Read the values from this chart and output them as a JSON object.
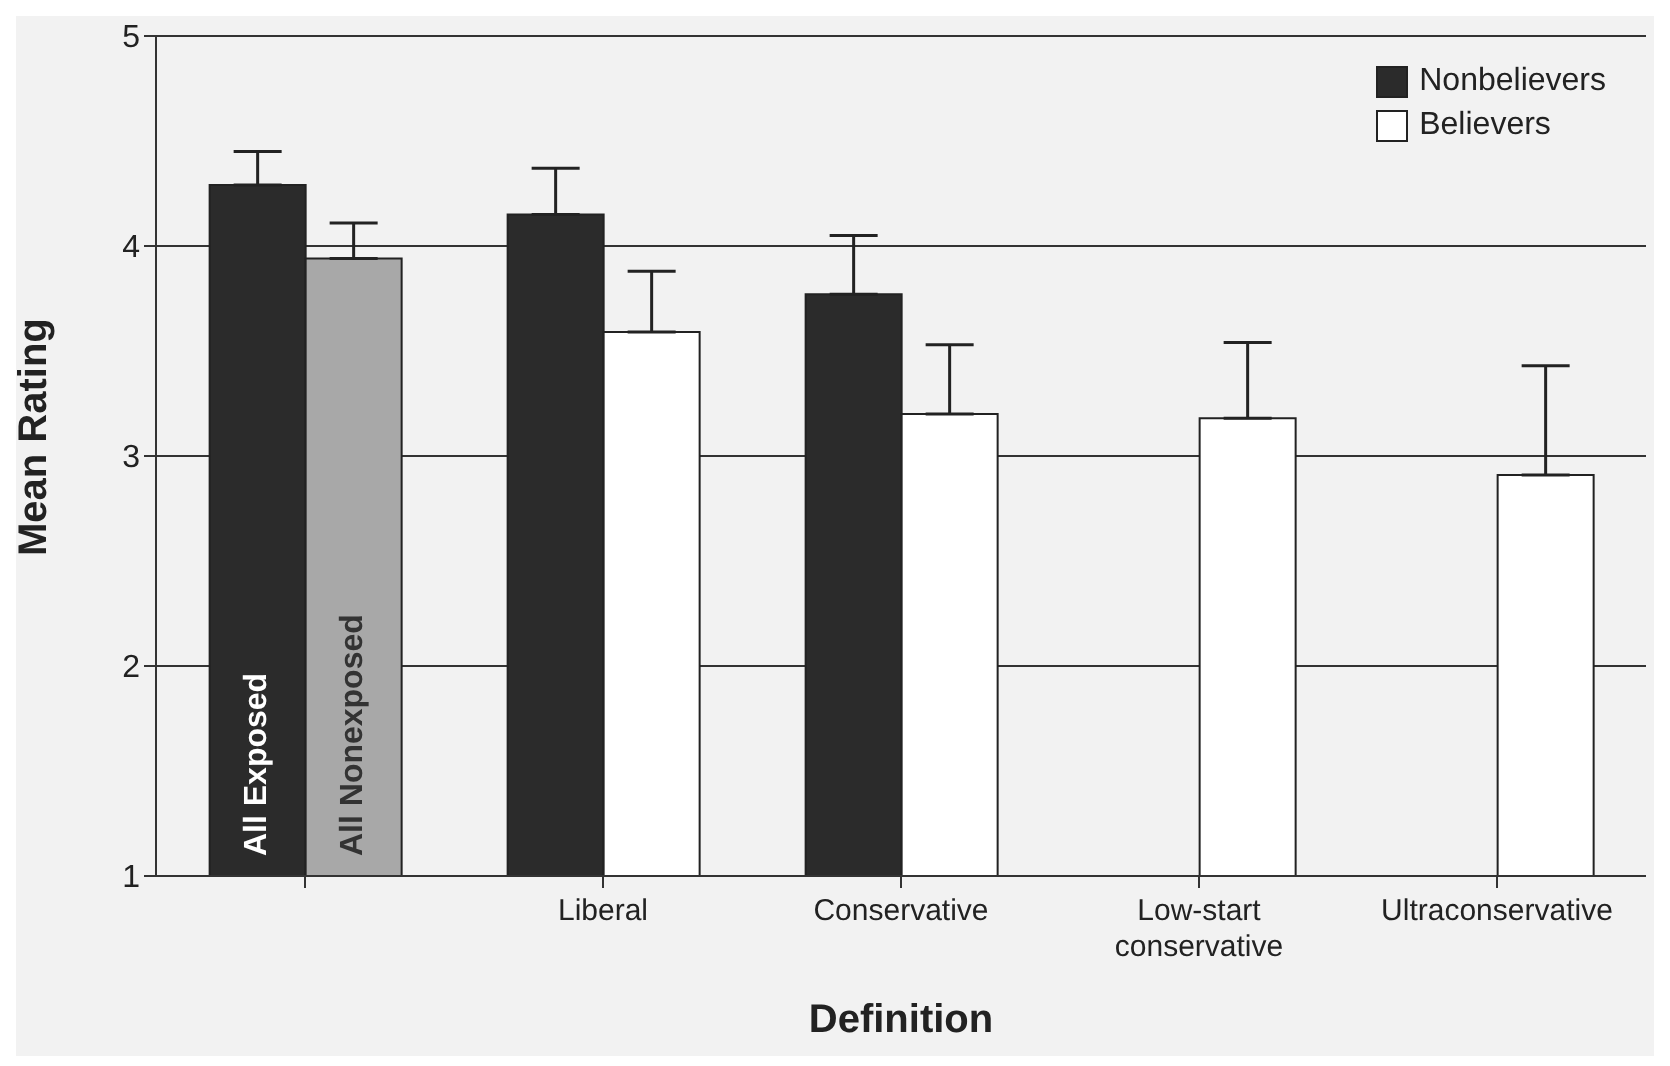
{
  "chart_data": {
    "type": "bar",
    "xlabel": "Definition",
    "ylabel": "Mean Rating",
    "categories": [
      null,
      "Liberal",
      "Conservative",
      "Low-start conservative",
      "Ultraconservative"
    ],
    "series": [
      {
        "name": "Nonbelievers",
        "color": "#2b2b2b",
        "values": [
          4.29,
          4.15,
          3.77,
          null,
          null
        ],
        "errors": [
          [
            4.29,
            4.45
          ],
          [
            4.15,
            4.37
          ],
          [
            3.77,
            4.05
          ],
          null,
          null
        ]
      },
      {
        "name": "Believers",
        "color": "#ffffff",
        "colors": [
          "#a8a8a8",
          "#ffffff",
          "#ffffff",
          "#ffffff",
          "#ffffff"
        ],
        "values": [
          3.94,
          3.59,
          3.2,
          3.18,
          2.91
        ],
        "errors": [
          [
            3.94,
            4.11
          ],
          [
            3.59,
            3.88
          ],
          [
            3.2,
            3.53
          ],
          [
            3.18,
            3.54
          ],
          [
            2.91,
            3.43
          ]
        ]
      }
    ],
    "annotations": [
      "All Exposed",
      "All Nonexposed"
    ],
    "ylim": [
      1,
      5
    ],
    "yticks": [
      1,
      2,
      3,
      4,
      5
    ],
    "grid": "y",
    "legend": "top right"
  }
}
